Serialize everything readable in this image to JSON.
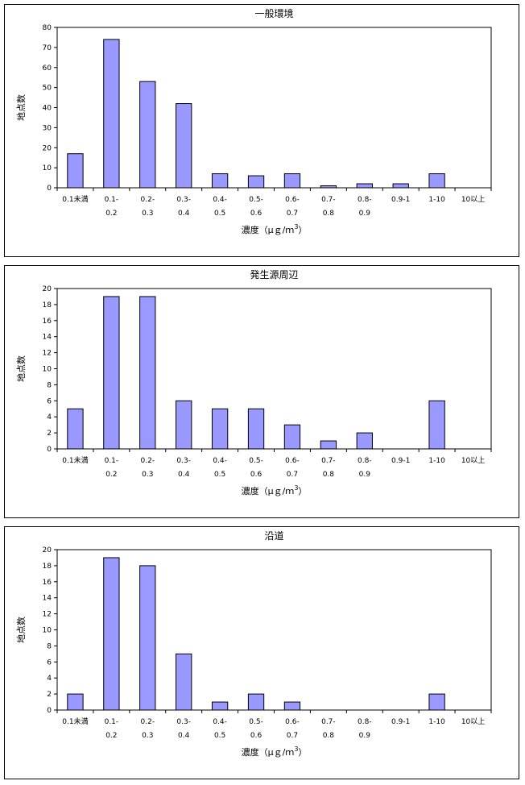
{
  "chart_data": [
    {
      "type": "bar",
      "title": "一般環境",
      "ylabel": "地点数",
      "xlabel": "濃度（μｇ/ｍ",
      "xlabel_sup": "3",
      "xlabel_suffix": "）",
      "categories": [
        [
          "0.1未満"
        ],
        [
          "0.1-",
          "0.2"
        ],
        [
          "0.2-",
          "0.3"
        ],
        [
          "0.3-",
          "0.4"
        ],
        [
          "0.4-",
          "0.5"
        ],
        [
          "0.5-",
          "0.6"
        ],
        [
          "0.6-",
          "0.7"
        ],
        [
          "0.7-",
          "0.8"
        ],
        [
          "0.8-",
          "0.9"
        ],
        [
          "0.9-1"
        ],
        [
          "1-10"
        ],
        [
          "10以上"
        ]
      ],
      "values": [
        17,
        74,
        53,
        42,
        7,
        6,
        7,
        1,
        2,
        2,
        7,
        0
      ],
      "ylim": [
        0,
        80
      ],
      "yticks": [
        0,
        10,
        20,
        30,
        40,
        50,
        60,
        70,
        80
      ],
      "bar_color": "#9999ff"
    },
    {
      "type": "bar",
      "title": "発生源周辺",
      "ylabel": "地点数",
      "xlabel": "濃度（μｇ/ｍ",
      "xlabel_sup": "3",
      "xlabel_suffix": "）",
      "categories": [
        [
          "0.1未満"
        ],
        [
          "0.1-",
          "0.2"
        ],
        [
          "0.2-",
          "0.3"
        ],
        [
          "0.3-",
          "0.4"
        ],
        [
          "0.4-",
          "0.5"
        ],
        [
          "0.5-",
          "0.6"
        ],
        [
          "0.6-",
          "0.7"
        ],
        [
          "0.7-",
          "0.8"
        ],
        [
          "0.8-",
          "0.9"
        ],
        [
          "0.9-1"
        ],
        [
          "1-10"
        ],
        [
          "10以上"
        ]
      ],
      "values": [
        5,
        19,
        19,
        6,
        5,
        5,
        3,
        1,
        2,
        0,
        6,
        0
      ],
      "ylim": [
        0,
        20
      ],
      "yticks": [
        0,
        2,
        4,
        6,
        8,
        10,
        12,
        14,
        16,
        18,
        20
      ],
      "bar_color": "#9999ff"
    },
    {
      "type": "bar",
      "title": "沿道",
      "ylabel": "地点数",
      "xlabel": "濃度（μｇ/ｍ",
      "xlabel_sup": "3",
      "xlabel_suffix": "）",
      "categories": [
        [
          "0.1未満"
        ],
        [
          "0.1-",
          "0.2"
        ],
        [
          "0.2-",
          "0.3"
        ],
        [
          "0.3-",
          "0.4"
        ],
        [
          "0.4-",
          "0.5"
        ],
        [
          "0.5-",
          "0.6"
        ],
        [
          "0.6-",
          "0.7"
        ],
        [
          "0.7-",
          "0.8"
        ],
        [
          "0.8-",
          "0.9"
        ],
        [
          "0.9-1"
        ],
        [
          "1-10"
        ],
        [
          "10以上"
        ]
      ],
      "values": [
        2,
        19,
        18,
        7,
        1,
        2,
        1,
        0,
        0,
        0,
        2,
        0
      ],
      "ylim": [
        0,
        20
      ],
      "yticks": [
        0,
        2,
        4,
        6,
        8,
        10,
        12,
        14,
        16,
        18,
        20
      ],
      "bar_color": "#9999ff"
    }
  ]
}
